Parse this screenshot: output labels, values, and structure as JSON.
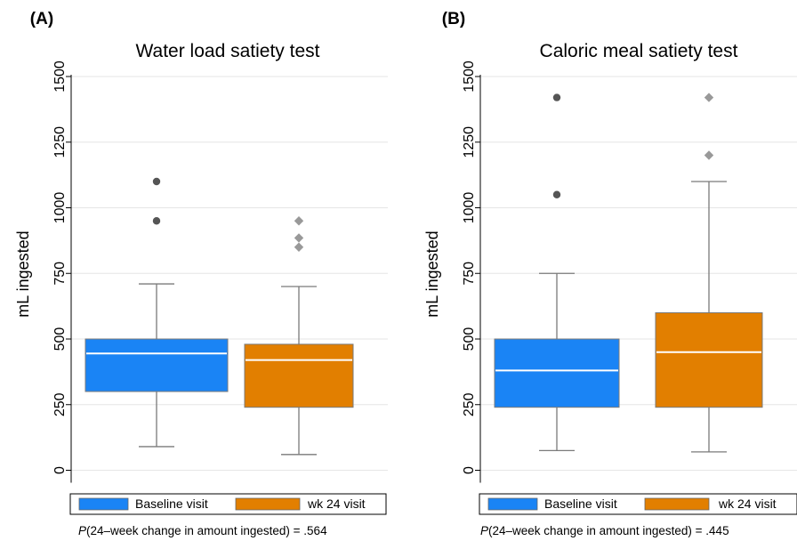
{
  "colors": {
    "baseline": "#1a84f5",
    "week24": "#e27f00",
    "whisker": "#7a7a7a",
    "outlier_baseline": "#555555",
    "outlier_week24": "#999999",
    "grid": "#e6e6e6",
    "median": "#ffffff"
  },
  "chart_data": [
    {
      "type": "box",
      "panel_label": "(A)",
      "title": "Water load satiety test",
      "ylabel": "mL ingested",
      "ylim": [
        0,
        1500
      ],
      "yticks": [
        "0",
        "250",
        "500",
        "750",
        "1000",
        "1250",
        "1500"
      ],
      "grid": true,
      "legend_position": "bottom",
      "series": [
        {
          "name": "Baseline visit",
          "color_key": "baseline",
          "outlier_marker": "circle",
          "whisker_low": 90,
          "q1": 300,
          "median": 445,
          "q3": 500,
          "whisker_high": 710,
          "outliers": [
            950,
            1100
          ]
        },
        {
          "name": "wk 24 visit",
          "color_key": "week24",
          "outlier_marker": "diamond",
          "whisker_low": 60,
          "q1": 240,
          "median": 420,
          "q3": 480,
          "whisker_high": 700,
          "outliers": [
            850,
            885,
            950
          ]
        }
      ],
      "annotation": {
        "p_italic": "P",
        "rest": "(24–week change in amount ingested) = .564"
      }
    },
    {
      "type": "box",
      "panel_label": "(B)",
      "title": "Caloric meal satiety test",
      "ylabel": "mL ingested",
      "ylim": [
        0,
        1500
      ],
      "yticks": [
        "0",
        "250",
        "500",
        "750",
        "1000",
        "1250",
        "1500"
      ],
      "grid": true,
      "legend_position": "bottom",
      "series": [
        {
          "name": "Baseline visit",
          "color_key": "baseline",
          "outlier_marker": "circle",
          "whisker_low": 75,
          "q1": 240,
          "median": 380,
          "q3": 500,
          "whisker_high": 750,
          "outliers": [
            1050,
            1420
          ]
        },
        {
          "name": "wk 24 visit",
          "color_key": "week24",
          "outlier_marker": "diamond",
          "whisker_low": 70,
          "q1": 240,
          "median": 450,
          "q3": 600,
          "whisker_high": 1100,
          "outliers": [
            1200,
            1420
          ]
        }
      ],
      "annotation": {
        "p_italic": "P",
        "rest": "(24–week change in amount ingested) = .445"
      }
    }
  ]
}
